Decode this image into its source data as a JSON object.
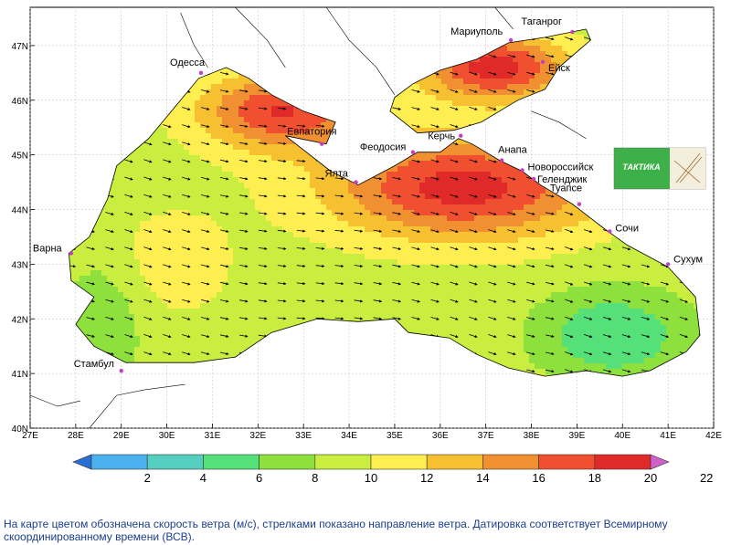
{
  "map": {
    "lat_ticks": [
      "40N",
      "41N",
      "42N",
      "43N",
      "44N",
      "45N",
      "46N",
      "47N"
    ],
    "lon_ticks": [
      "27E",
      "28E",
      "29E",
      "30E",
      "31E",
      "32E",
      "33E",
      "34E",
      "35E",
      "36E",
      "37E",
      "38E",
      "39E",
      "40E",
      "41E",
      "42E"
    ],
    "cities": [
      {
        "name": "Мариуполь",
        "lon": 37.55,
        "lat": 47.1
      },
      {
        "name": "Таганрог",
        "lon": 38.9,
        "lat": 47.25
      },
      {
        "name": "Одесса",
        "lon": 30.75,
        "lat": 46.5
      },
      {
        "name": "Ейск",
        "lon": 38.25,
        "lat": 46.7
      },
      {
        "name": "Евпатория",
        "lon": 33.4,
        "lat": 45.2
      },
      {
        "name": "Феодосия",
        "lon": 35.4,
        "lat": 45.05
      },
      {
        "name": "Керчь",
        "lon": 36.45,
        "lat": 45.35
      },
      {
        "name": "Анапа",
        "lon": 37.35,
        "lat": 44.9
      },
      {
        "name": "Новороссийск",
        "lon": 37.8,
        "lat": 44.72
      },
      {
        "name": "Геленджик",
        "lon": 38.05,
        "lat": 44.56
      },
      {
        "name": "Ялта",
        "lon": 34.15,
        "lat": 44.5
      },
      {
        "name": "Туапсе",
        "lon": 39.05,
        "lat": 44.1
      },
      {
        "name": "Сочи",
        "lon": 39.72,
        "lat": 43.6
      },
      {
        "name": "Варна",
        "lon": 27.9,
        "lat": 43.2
      },
      {
        "name": "Сухум",
        "lon": 41.0,
        "lat": 43.0
      },
      {
        "name": "Стамбул",
        "lon": 29.0,
        "lat": 41.05
      }
    ],
    "logo_text": "ТАКТИКА"
  },
  "colorbar": {
    "labels": [
      "2",
      "4",
      "6",
      "8",
      "10",
      "12",
      "14",
      "16",
      "18",
      "20",
      "22"
    ],
    "colors": [
      "#2a6fd6",
      "#4ab0ee",
      "#55cfc0",
      "#55e07a",
      "#8ee03c",
      "#c9ee40",
      "#ffee50",
      "#f6c030",
      "#f09030",
      "#f05030",
      "#e02a2a",
      "#d060c8"
    ]
  },
  "caption": "На карте цветом обозначена скорость ветра (м/с), стрелками показано направление ветра. Датировка соответствует Всемирному скоординированному времени (ВСВ)."
}
